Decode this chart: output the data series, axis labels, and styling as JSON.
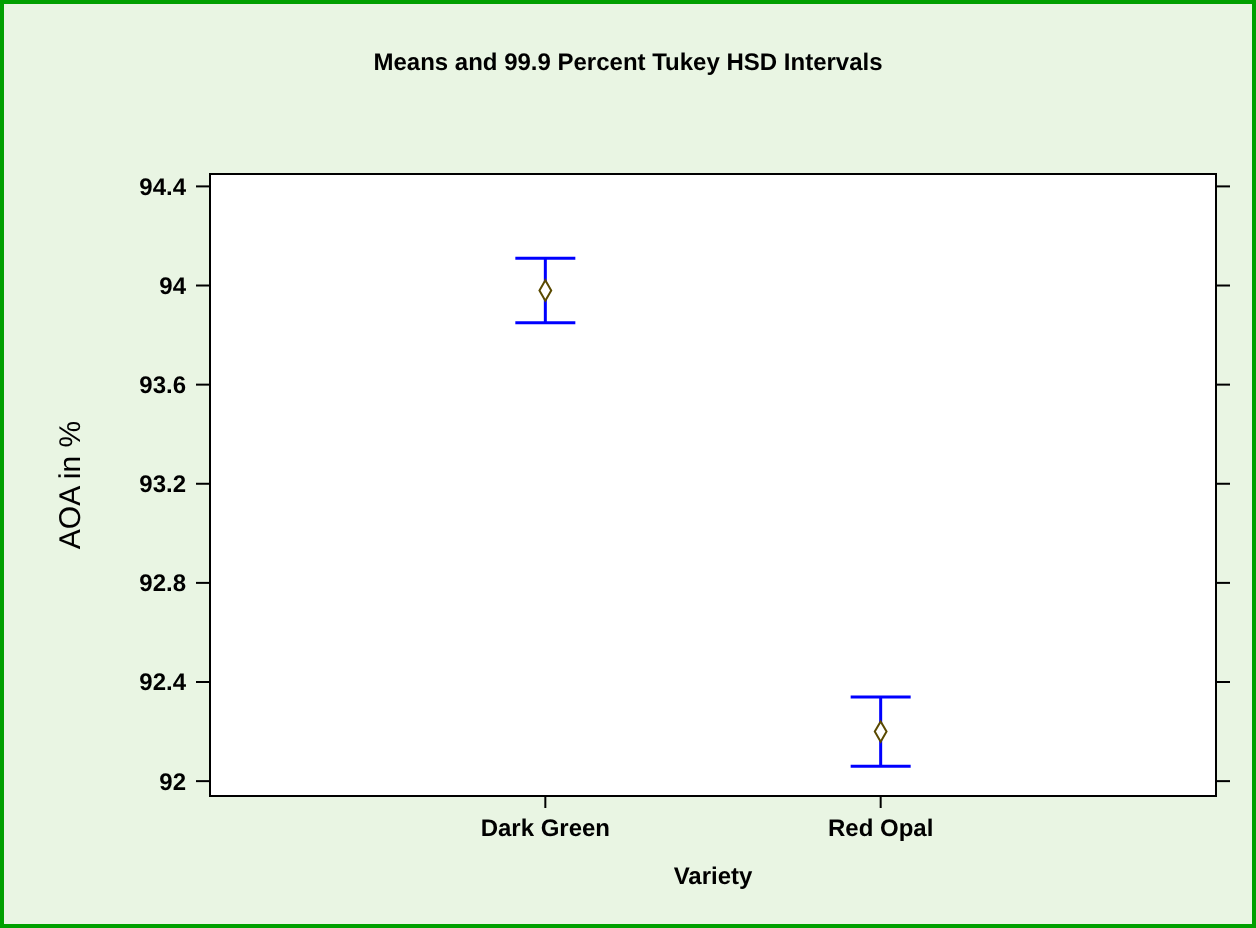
{
  "chart_data": {
    "type": "scatter",
    "title": "Means and 99.9 Percent Tukey HSD Intervals",
    "xlabel": "Variety",
    "ylabel": "AOA in %",
    "categories": [
      "Dark Green",
      "Red Opal"
    ],
    "series": [
      {
        "color": "#5a4a00",
        "values": [
          93.98,
          92.2
        ],
        "errors": [
          0.13,
          0.14
        ]
      }
    ],
    "ylim": [
      91.94,
      94.45
    ],
    "yticks": [
      92,
      92.4,
      92.8,
      93.2,
      93.6,
      94,
      94.4
    ],
    "marker": "diamond",
    "grid": false
  }
}
